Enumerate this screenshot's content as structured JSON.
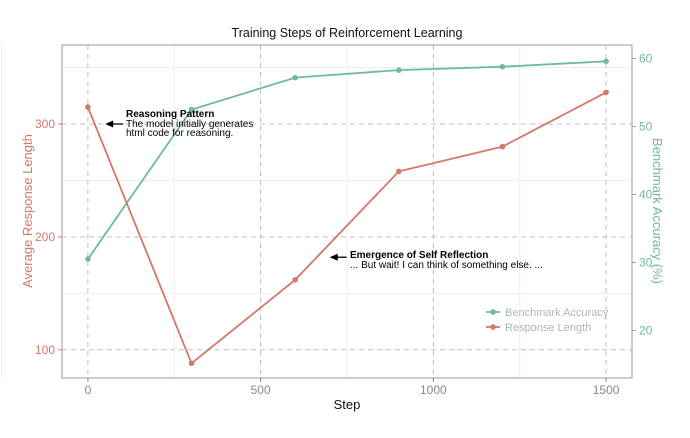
{
  "chart_data": {
    "type": "line",
    "title": "Training Steps of Reinforcement Learning",
    "xlabel": "Step",
    "ylabel_left": "Average Response Length",
    "ylabel_right": "Benchmark Accuracy (%)",
    "xlim": [
      -75,
      1575
    ],
    "ylim_left": [
      75,
      370
    ],
    "ylim_right": [
      13,
      62
    ],
    "x_ticks": [
      0,
      500,
      1000,
      1500
    ],
    "y_left_ticks": [
      100,
      200,
      300
    ],
    "y_right_ticks": [
      20,
      30,
      40,
      50,
      60
    ],
    "grid": true,
    "legend_position": "lower-right",
    "colors": {
      "response": "#d4776b",
      "accuracy": "#6fba9f"
    },
    "series": [
      {
        "name": "Benchmark Accuracy",
        "axis": "right",
        "x": [
          0,
          300,
          600,
          900,
          1200,
          1500
        ],
        "y": [
          30.5,
          52.5,
          57.2,
          58.3,
          58.8,
          59.6
        ]
      },
      {
        "name": "Response Length",
        "axis": "left",
        "x": [
          0,
          300,
          600,
          900,
          1200,
          1500
        ],
        "y": [
          315,
          88,
          162,
          258,
          280,
          328
        ]
      }
    ],
    "annotations": [
      {
        "title": "Reasoning Pattern",
        "text": "The model initially generates html code for reasoning.",
        "lines": [
          "The model initially generates",
          "html code for reasoning."
        ],
        "point": [
          50,
          300
        ]
      },
      {
        "title": "Emergence of Self Reflection",
        "text": "... But wait! I can think of something else. ...",
        "lines": [
          "... But wait! I can think of something else. ..."
        ],
        "point": [
          700,
          182
        ]
      }
    ]
  }
}
